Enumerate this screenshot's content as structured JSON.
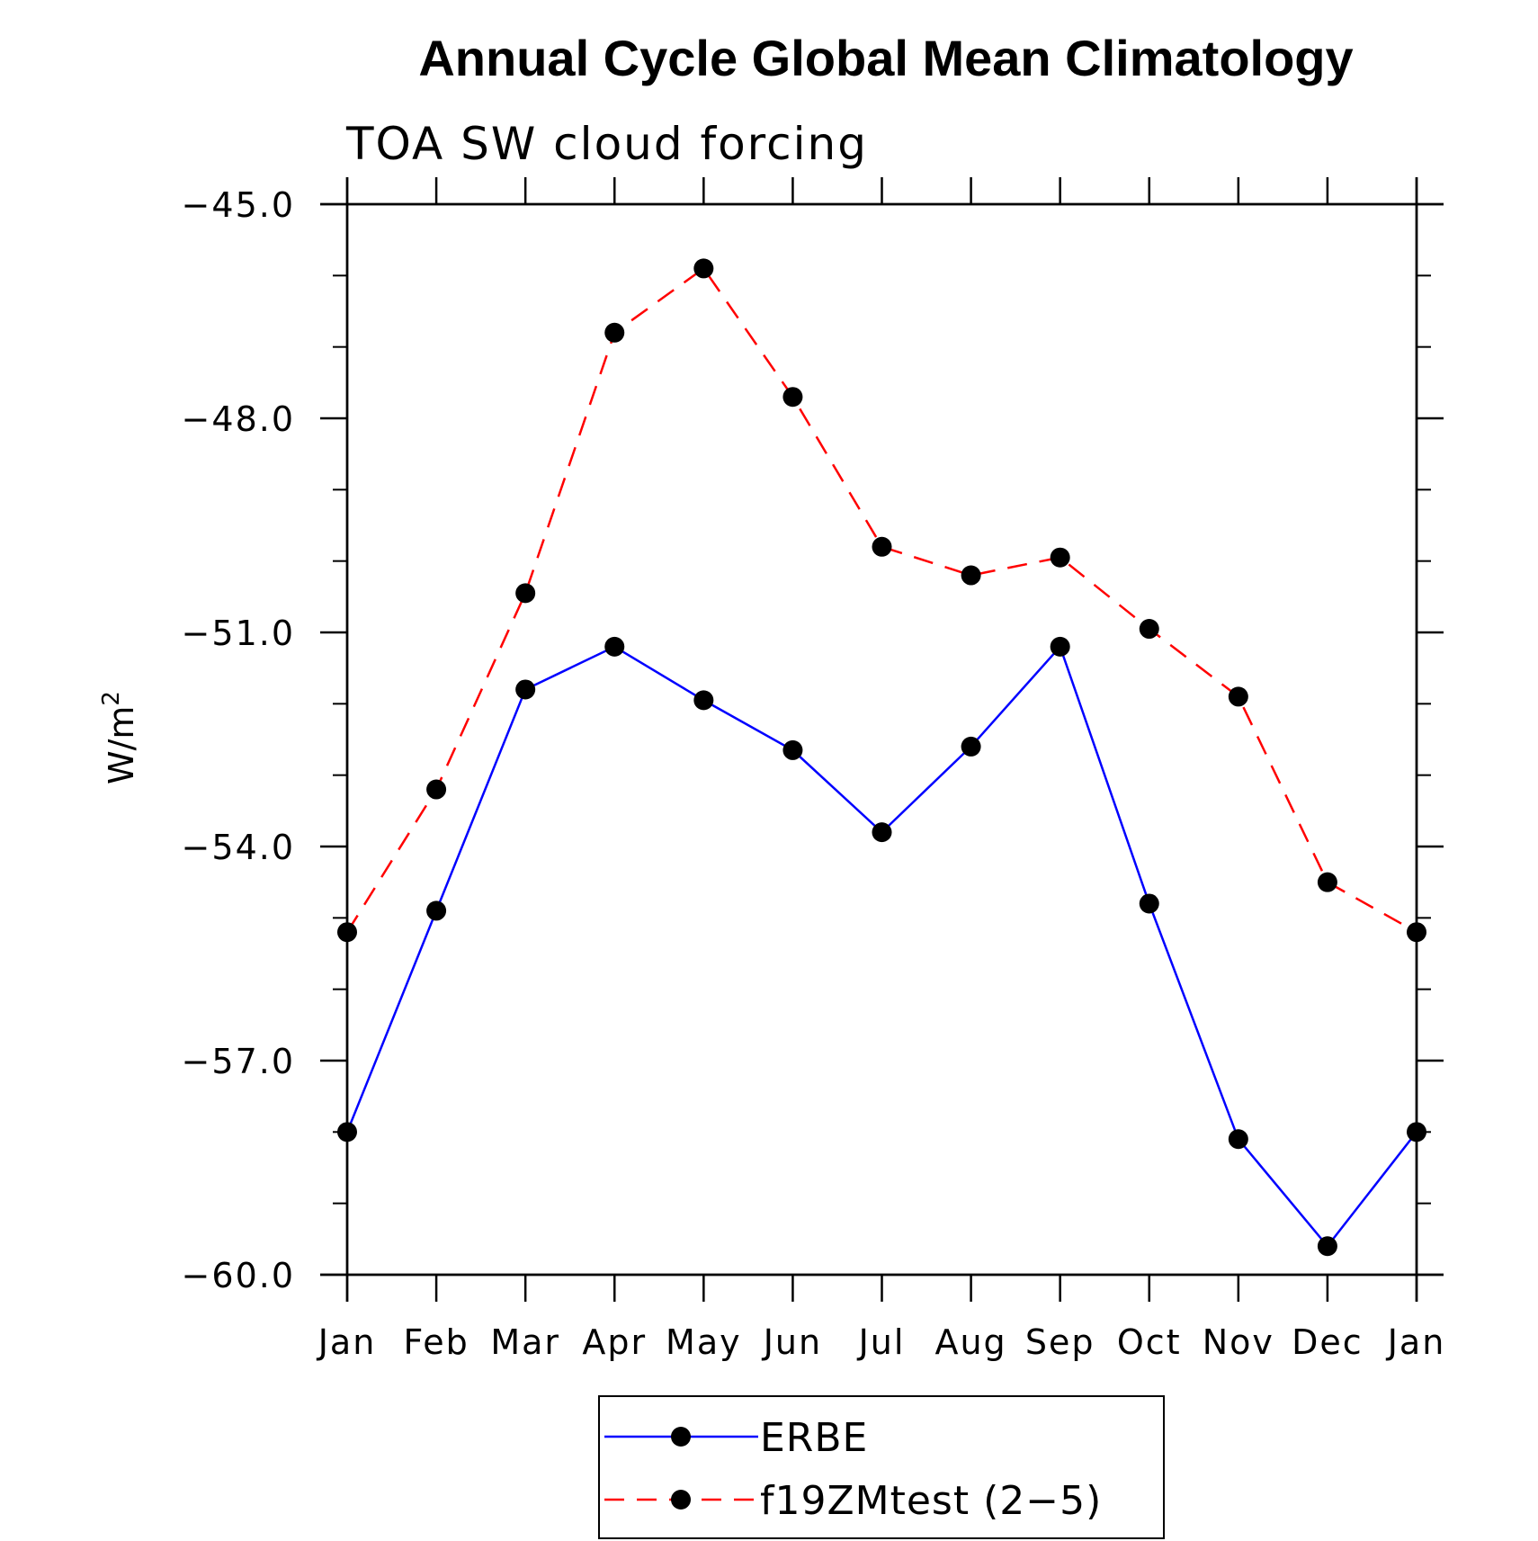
{
  "chart_data": {
    "type": "line",
    "title": "Annual Cycle Global Mean Climatology",
    "subtitle": "TOA SW cloud forcing",
    "ylabel": "W/m",
    "ylabel_superscript": "2",
    "categories": [
      "Jan",
      "Feb",
      "Mar",
      "Apr",
      "May",
      "Jun",
      "Jul",
      "Aug",
      "Sep",
      "Oct",
      "Nov",
      "Dec",
      "Jan"
    ],
    "ylim": [
      -60.0,
      -45.0
    ],
    "yticks": [
      -60.0,
      -57.0,
      -54.0,
      -51.0,
      -48.0,
      -45.0
    ],
    "ytick_labels": [
      "−60.0",
      "−57.0",
      "−54.0",
      "−51.0",
      "−48.0",
      "−45.0"
    ],
    "series": [
      {
        "name": "ERBE",
        "color": "#0000ff",
        "dash": "solid",
        "values": [
          -58.0,
          -54.9,
          -51.8,
          -51.2,
          -51.95,
          -52.65,
          -53.8,
          -52.6,
          -51.2,
          -54.8,
          -58.1,
          -59.6,
          -58.0
        ]
      },
      {
        "name": "f19ZMtest (2−5)",
        "color": "#ff0000",
        "dash": "dashed",
        "values": [
          -55.2,
          -53.2,
          -50.45,
          -46.8,
          -45.9,
          -47.7,
          -49.8,
          -50.2,
          -49.95,
          -50.95,
          -51.9,
          -54.5,
          -55.2
        ]
      }
    ],
    "marker": "filled-circle",
    "grid": false,
    "legend_position": "bottom-center"
  }
}
